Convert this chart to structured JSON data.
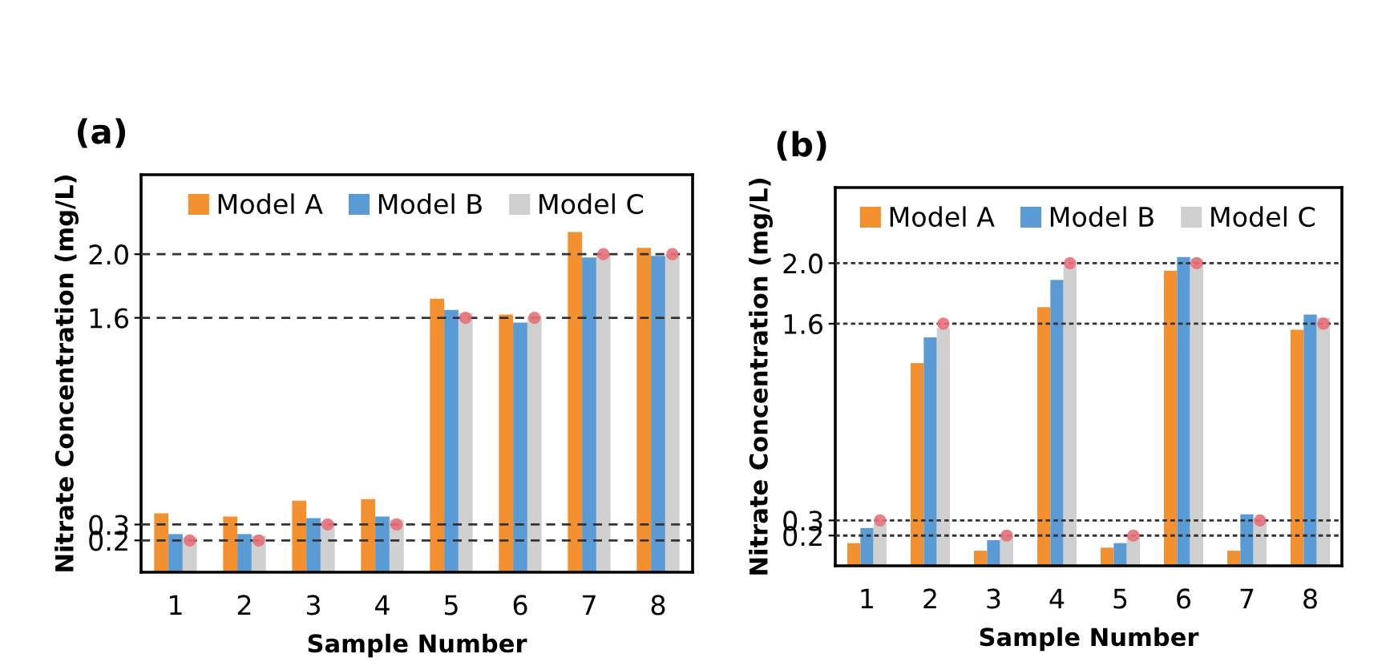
{
  "chart_data": [
    {
      "type": "bar",
      "title": "(a)",
      "xlabel": "Sample Number",
      "ylabel": "Nitrate Concentration (mg/L)",
      "categories": [
        "1",
        "2",
        "3",
        "4",
        "5",
        "6",
        "7",
        "8"
      ],
      "series": [
        {
          "name": "Model A",
          "color": "#f39130",
          "values": [
            0.37,
            0.35,
            0.45,
            0.46,
            1.72,
            1.62,
            2.14,
            2.04
          ]
        },
        {
          "name": "Model B",
          "color": "#5b9bd5",
          "values": [
            0.24,
            0.24,
            0.34,
            0.35,
            1.65,
            1.57,
            1.98,
            1.99
          ]
        },
        {
          "name": "Model C",
          "color": "#d0d0d0",
          "values": [
            0.22,
            0.23,
            0.32,
            0.33,
            1.63,
            1.61,
            2.0,
            2.0
          ]
        },
        {
          "type": "scatter",
          "color": "#e8707a",
          "marker": "circle",
          "x": [
            "1",
            "2",
            "3",
            "4",
            "5",
            "6",
            "7",
            "8"
          ],
          "values": [
            0.2,
            0.2,
            0.3,
            0.3,
            1.6,
            1.6,
            2.0,
            2.0
          ]
        }
      ],
      "ylim": [
        0,
        2.5
      ],
      "yticks": [
        {
          "value": 0.2,
          "label": "0.2"
        },
        {
          "value": 0.3,
          "label": "0.3"
        },
        {
          "value": 1.6,
          "label": "1.6"
        },
        {
          "value": 2.0,
          "label": "2.0"
        }
      ],
      "ref_lines": [
        {
          "axis": "y",
          "value": 0.2,
          "color": "#333333",
          "line_style": "dashed"
        },
        {
          "axis": "y",
          "value": 0.3,
          "color": "#333333",
          "line_style": "dashed"
        },
        {
          "axis": "y",
          "value": 1.6,
          "color": "#333333",
          "line_style": "dashed"
        },
        {
          "axis": "y",
          "value": 2.0,
          "color": "#333333",
          "line_style": "dashed"
        }
      ],
      "grid": false,
      "legend": "top"
    },
    {
      "type": "bar",
      "title": "(b)",
      "xlabel": "Sample Number",
      "ylabel": "Nitrate Concentration (mg/L)",
      "categories": [
        "1",
        "2",
        "3",
        "4",
        "5",
        "6",
        "7",
        "8"
      ],
      "series": [
        {
          "name": "Model A",
          "color": "#f39130",
          "values": [
            0.15,
            1.34,
            0.1,
            1.71,
            0.12,
            1.95,
            0.1,
            1.56
          ]
        },
        {
          "name": "Model B",
          "color": "#5b9bd5",
          "values": [
            0.25,
            1.51,
            0.17,
            1.89,
            0.15,
            2.04,
            0.34,
            1.66
          ]
        },
        {
          "name": "Model C",
          "color": "#d0d0d0",
          "values": [
            0.28,
            1.57,
            0.2,
            1.98,
            0.19,
            2.03,
            0.31,
            1.64
          ]
        },
        {
          "type": "scatter",
          "color": "#e8707a",
          "marker": "circle",
          "x": [
            "1",
            "2",
            "3",
            "4",
            "5",
            "6",
            "7",
            "8"
          ],
          "values": [
            0.3,
            1.6,
            0.2,
            2.0,
            0.2,
            2.0,
            0.3,
            1.6
          ]
        }
      ],
      "ylim": [
        0,
        2.5
      ],
      "yticks": [
        {
          "value": 0.2,
          "label": "0.2"
        },
        {
          "value": 0.3,
          "label": "0.3"
        },
        {
          "value": 1.6,
          "label": "1.6"
        },
        {
          "value": 2.0,
          "label": "2.0"
        }
      ],
      "ref_lines": [
        {
          "axis": "y",
          "value": 0.2,
          "color": "#333333",
          "line_style": "dotted"
        },
        {
          "axis": "y",
          "value": 0.3,
          "color": "#333333",
          "line_style": "dotted"
        },
        {
          "axis": "y",
          "value": 1.6,
          "color": "#333333",
          "line_style": "dotted"
        },
        {
          "axis": "y",
          "value": 2.0,
          "color": "#333333",
          "line_style": "dotted"
        }
      ],
      "grid": false,
      "legend": "top"
    }
  ]
}
